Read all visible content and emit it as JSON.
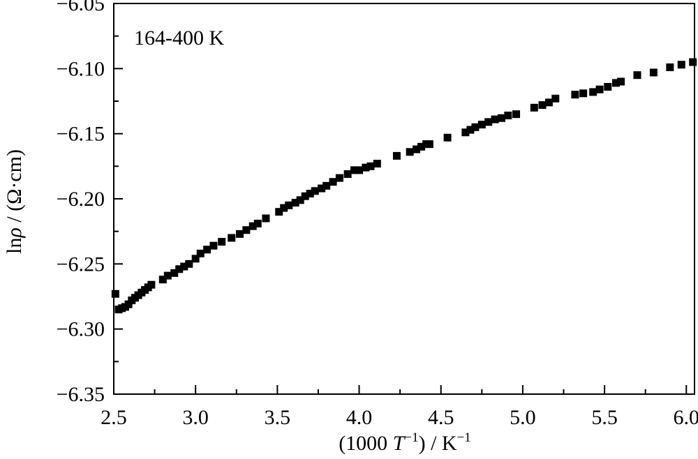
{
  "chart_data": {
    "type": "scatter",
    "title": "",
    "annotation": "164-400 K",
    "xlabel": {
      "prefix": "(1000 ",
      "var": "T",
      "var_sup": "−1",
      "mid": ") / K",
      "unit_sup": "−1"
    },
    "ylabel": {
      "prefix": "ln",
      "var": "ρ",
      "suffix": " / (Ω·cm)"
    },
    "xlim": [
      2.5,
      6.05
    ],
    "ylim": [
      -6.35,
      -6.05
    ],
    "xticks": [
      2.5,
      3.0,
      3.5,
      4.0,
      4.5,
      5.0,
      5.5,
      6.0
    ],
    "xtick_labels": [
      "2.5",
      "3.0",
      "3.5",
      "4.0",
      "4.5",
      "5.0",
      "5.5",
      "6.0"
    ],
    "yticks": [
      -6.35,
      -6.3,
      -6.25,
      -6.2,
      -6.15,
      -6.1,
      -6.05
    ],
    "ytick_labels": [
      "−6.35",
      "−6.30",
      "−6.25",
      "−6.20",
      "−6.15",
      "−6.10",
      "−6.05"
    ],
    "marker": "square",
    "marker_color": "#000000",
    "grid": false,
    "series": [
      {
        "x": [
          2.51,
          2.53,
          2.55,
          2.57,
          2.59,
          2.61,
          2.63,
          2.65,
          2.67,
          2.69,
          2.71,
          2.73,
          2.8,
          2.83,
          2.87,
          2.9,
          2.93,
          2.96,
          3.0,
          3.03,
          3.07,
          3.11,
          3.16,
          3.22,
          3.27,
          3.31,
          3.35,
          3.38,
          3.43,
          3.51,
          3.54,
          3.57,
          3.61,
          3.64,
          3.67,
          3.7,
          3.73,
          3.77,
          3.8,
          3.84,
          3.88,
          3.93,
          3.97,
          4.0,
          4.04,
          4.07,
          4.11,
          4.23,
          4.31,
          4.35,
          4.38,
          4.41,
          4.43,
          4.54,
          4.65,
          4.68,
          4.71,
          4.75,
          4.79,
          4.83,
          4.87,
          4.91,
          4.96,
          5.07,
          5.12,
          5.16,
          5.2,
          5.32,
          5.37,
          5.43,
          5.47,
          5.52,
          5.57,
          5.6,
          5.7,
          5.8,
          5.9,
          5.97,
          6.04
        ],
        "y": [
          -6.273,
          -6.285,
          -6.284,
          -6.283,
          -6.281,
          -6.278,
          -6.276,
          -6.274,
          -6.272,
          -6.27,
          -6.268,
          -6.266,
          -6.262,
          -6.259,
          -6.257,
          -6.254,
          -6.252,
          -6.25,
          -6.246,
          -6.242,
          -6.239,
          -6.236,
          -6.233,
          -6.23,
          -6.227,
          -6.224,
          -6.221,
          -6.219,
          -6.215,
          -6.21,
          -6.207,
          -6.205,
          -6.203,
          -6.201,
          -6.198,
          -6.196,
          -6.194,
          -6.192,
          -6.19,
          -6.187,
          -6.184,
          -6.181,
          -6.178,
          -6.178,
          -6.176,
          -6.175,
          -6.173,
          -6.167,
          -6.164,
          -6.162,
          -6.16,
          -6.158,
          -6.158,
          -6.153,
          -6.149,
          -6.147,
          -6.145,
          -6.143,
          -6.141,
          -6.139,
          -6.138,
          -6.136,
          -6.135,
          -6.13,
          -6.128,
          -6.126,
          -6.123,
          -6.12,
          -6.119,
          -6.118,
          -6.116,
          -6.114,
          -6.111,
          -6.11,
          -6.105,
          -6.103,
          -6.099,
          -6.097,
          -6.095
        ]
      }
    ]
  }
}
